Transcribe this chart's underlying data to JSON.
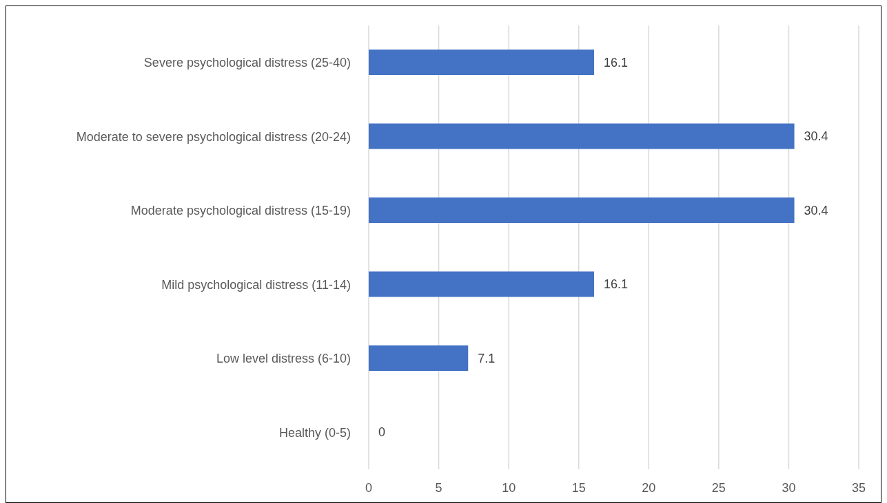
{
  "chart_data": {
    "type": "bar",
    "orientation": "horizontal",
    "categories": [
      "Severe psychological distress (25-40)",
      "Moderate to severe psychological distress (20-24)",
      "Moderate psychological distress (15-19)",
      "Mild psychological distress (11-14)",
      "Low level distress (6-10)",
      "Healthy (0-5)"
    ],
    "values": [
      16.1,
      30.4,
      30.4,
      16.1,
      7.1,
      0
    ],
    "color": "#4472c4",
    "xlim": [
      0,
      35
    ],
    "xticks": [
      0,
      5,
      10,
      15,
      20,
      25,
      30,
      35
    ],
    "grid": "x",
    "data_labels": true
  }
}
